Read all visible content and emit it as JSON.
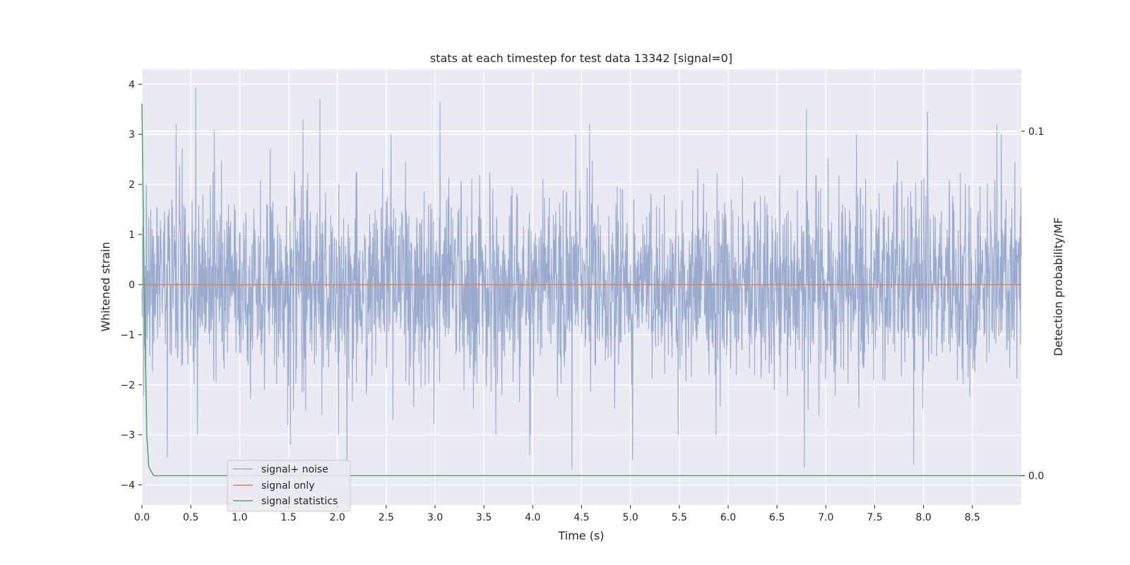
{
  "chart_data": {
    "type": "line",
    "title": "stats at each timestep for test data 13342 [signal=0]",
    "xlabel": "Time (s)",
    "ylabel": "Whitened strain",
    "y2label": "Detection probability/MF",
    "xlim": [
      0.0,
      9.0
    ],
    "ylim": [
      -4.4,
      4.3
    ],
    "y2lim": [
      -0.0085,
      0.118
    ],
    "x_ticks": [
      0.0,
      0.5,
      1.0,
      1.5,
      2.0,
      2.5,
      3.0,
      3.5,
      4.0,
      4.5,
      5.0,
      5.5,
      6.0,
      6.5,
      7.0,
      7.5,
      8.0,
      8.5
    ],
    "x_tick_labels": [
      "0.0",
      "0.5",
      "1.0",
      "1.5",
      "2.0",
      "2.5",
      "3.0",
      "3.5",
      "4.0",
      "4.5",
      "5.0",
      "5.5",
      "6.0",
      "6.5",
      "7.0",
      "7.5",
      "8.0",
      "8.5"
    ],
    "y_ticks": [
      -4,
      -3,
      -2,
      -1,
      0,
      1,
      2,
      3,
      4
    ],
    "y_tick_labels": [
      "−4",
      "−3",
      "−2",
      "−1",
      "0",
      "1",
      "2",
      "3",
      "4"
    ],
    "y2_ticks": [
      0.0,
      0.1
    ],
    "y2_tick_labels": [
      "0.0",
      "0.1"
    ],
    "grid": true,
    "legend_position": "lower-left",
    "colors": {
      "background": "#eaeaf2",
      "grid": "#ffffff",
      "noise": "#9aabcf",
      "signal": "#dd8452",
      "stats": "#55a868"
    },
    "series": [
      {
        "name": "signal+ noise",
        "axis": "left",
        "note_visible_range": "dense noise between about -3.7 and 3.9",
        "peaks": [
          {
            "x": 0.35,
            "y": 3.2
          },
          {
            "x": 0.55,
            "y": 3.95
          },
          {
            "x": 0.74,
            "y": 3.1
          },
          {
            "x": 1.65,
            "y": 3.3
          },
          {
            "x": 1.82,
            "y": 3.7
          },
          {
            "x": 3.05,
            "y": 3.65
          },
          {
            "x": 4.58,
            "y": 3.2
          },
          {
            "x": 6.8,
            "y": 3.5
          },
          {
            "x": 8.04,
            "y": 3.45
          },
          {
            "x": 8.75,
            "y": 3.2
          }
        ],
        "troughs": [
          {
            "x": 0.26,
            "y": -3.45
          },
          {
            "x": 1.52,
            "y": -3.2
          },
          {
            "x": 2.1,
            "y": -3.85
          },
          {
            "x": 3.97,
            "y": -3.4
          },
          {
            "x": 4.4,
            "y": -3.7
          },
          {
            "x": 5.02,
            "y": -3.5
          },
          {
            "x": 6.78,
            "y": -3.65
          },
          {
            "x": 7.9,
            "y": -3.6
          }
        ]
      },
      {
        "name": "signal only",
        "axis": "left",
        "x": [
          0.0,
          9.0
        ],
        "values": [
          0.0,
          0.0
        ]
      },
      {
        "name": "signal statistics",
        "axis": "right",
        "x": [
          0.0,
          0.02,
          0.05,
          0.07,
          0.12,
          9.0
        ],
        "values": [
          0.108,
          0.06,
          0.0115,
          0.0025,
          0.0,
          0.0
        ]
      }
    ],
    "reference_lines": [
      {
        "axis": "right",
        "value": 0.1,
        "color": "#ffffff"
      }
    ]
  }
}
